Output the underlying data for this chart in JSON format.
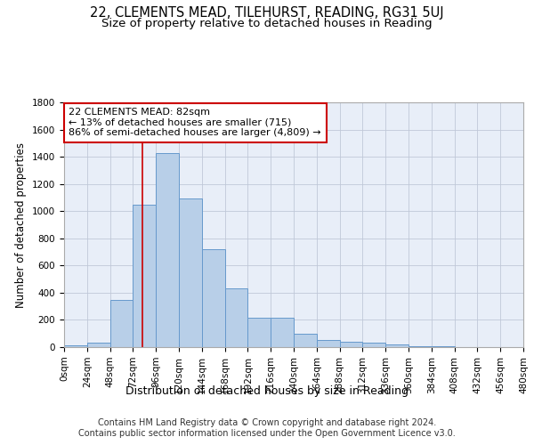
{
  "title": "22, CLEMENTS MEAD, TILEHURST, READING, RG31 5UJ",
  "subtitle": "Size of property relative to detached houses in Reading",
  "xlabel": "Distribution of detached houses by size in Reading",
  "ylabel": "Number of detached properties",
  "bar_color": "#b8cfe8",
  "bar_edge_color": "#6699cc",
  "background_color": "#ffffff",
  "plot_bg_color": "#e8eef8",
  "grid_color": "#c0c8d8",
  "annotation_text": "22 CLEMENTS MEAD: 82sqm\n← 13% of detached houses are smaller (715)\n86% of semi-detached houses are larger (4,809) →",
  "annotation_box_color": "#cc0000",
  "vline_x": 82,
  "vline_color": "#cc0000",
  "bins": [
    0,
    24,
    48,
    72,
    96,
    120,
    144,
    168,
    192,
    216,
    240,
    264,
    288,
    312,
    336,
    360,
    384,
    408,
    432,
    456,
    480
  ],
  "bar_heights": [
    10,
    30,
    350,
    1050,
    1430,
    1090,
    720,
    430,
    215,
    215,
    100,
    50,
    40,
    30,
    20,
    5,
    5,
    2,
    1,
    0
  ],
  "xlim": [
    0,
    480
  ],
  "ylim": [
    0,
    1800
  ],
  "yticks": [
    0,
    200,
    400,
    600,
    800,
    1000,
    1200,
    1400,
    1600,
    1800
  ],
  "xtick_labels": [
    "0sqm",
    "24sqm",
    "48sqm",
    "72sqm",
    "96sqm",
    "120sqm",
    "144sqm",
    "168sqm",
    "192sqm",
    "216sqm",
    "240sqm",
    "264sqm",
    "288sqm",
    "312sqm",
    "336sqm",
    "360sqm",
    "384sqm",
    "408sqm",
    "432sqm",
    "456sqm",
    "480sqm"
  ],
  "footer_text": "Contains HM Land Registry data © Crown copyright and database right 2024.\nContains public sector information licensed under the Open Government Licence v3.0.",
  "title_fontsize": 10.5,
  "subtitle_fontsize": 9.5,
  "xlabel_fontsize": 9,
  "ylabel_fontsize": 8.5,
  "tick_fontsize": 7.5,
  "footer_fontsize": 7,
  "annotation_fontsize": 8
}
